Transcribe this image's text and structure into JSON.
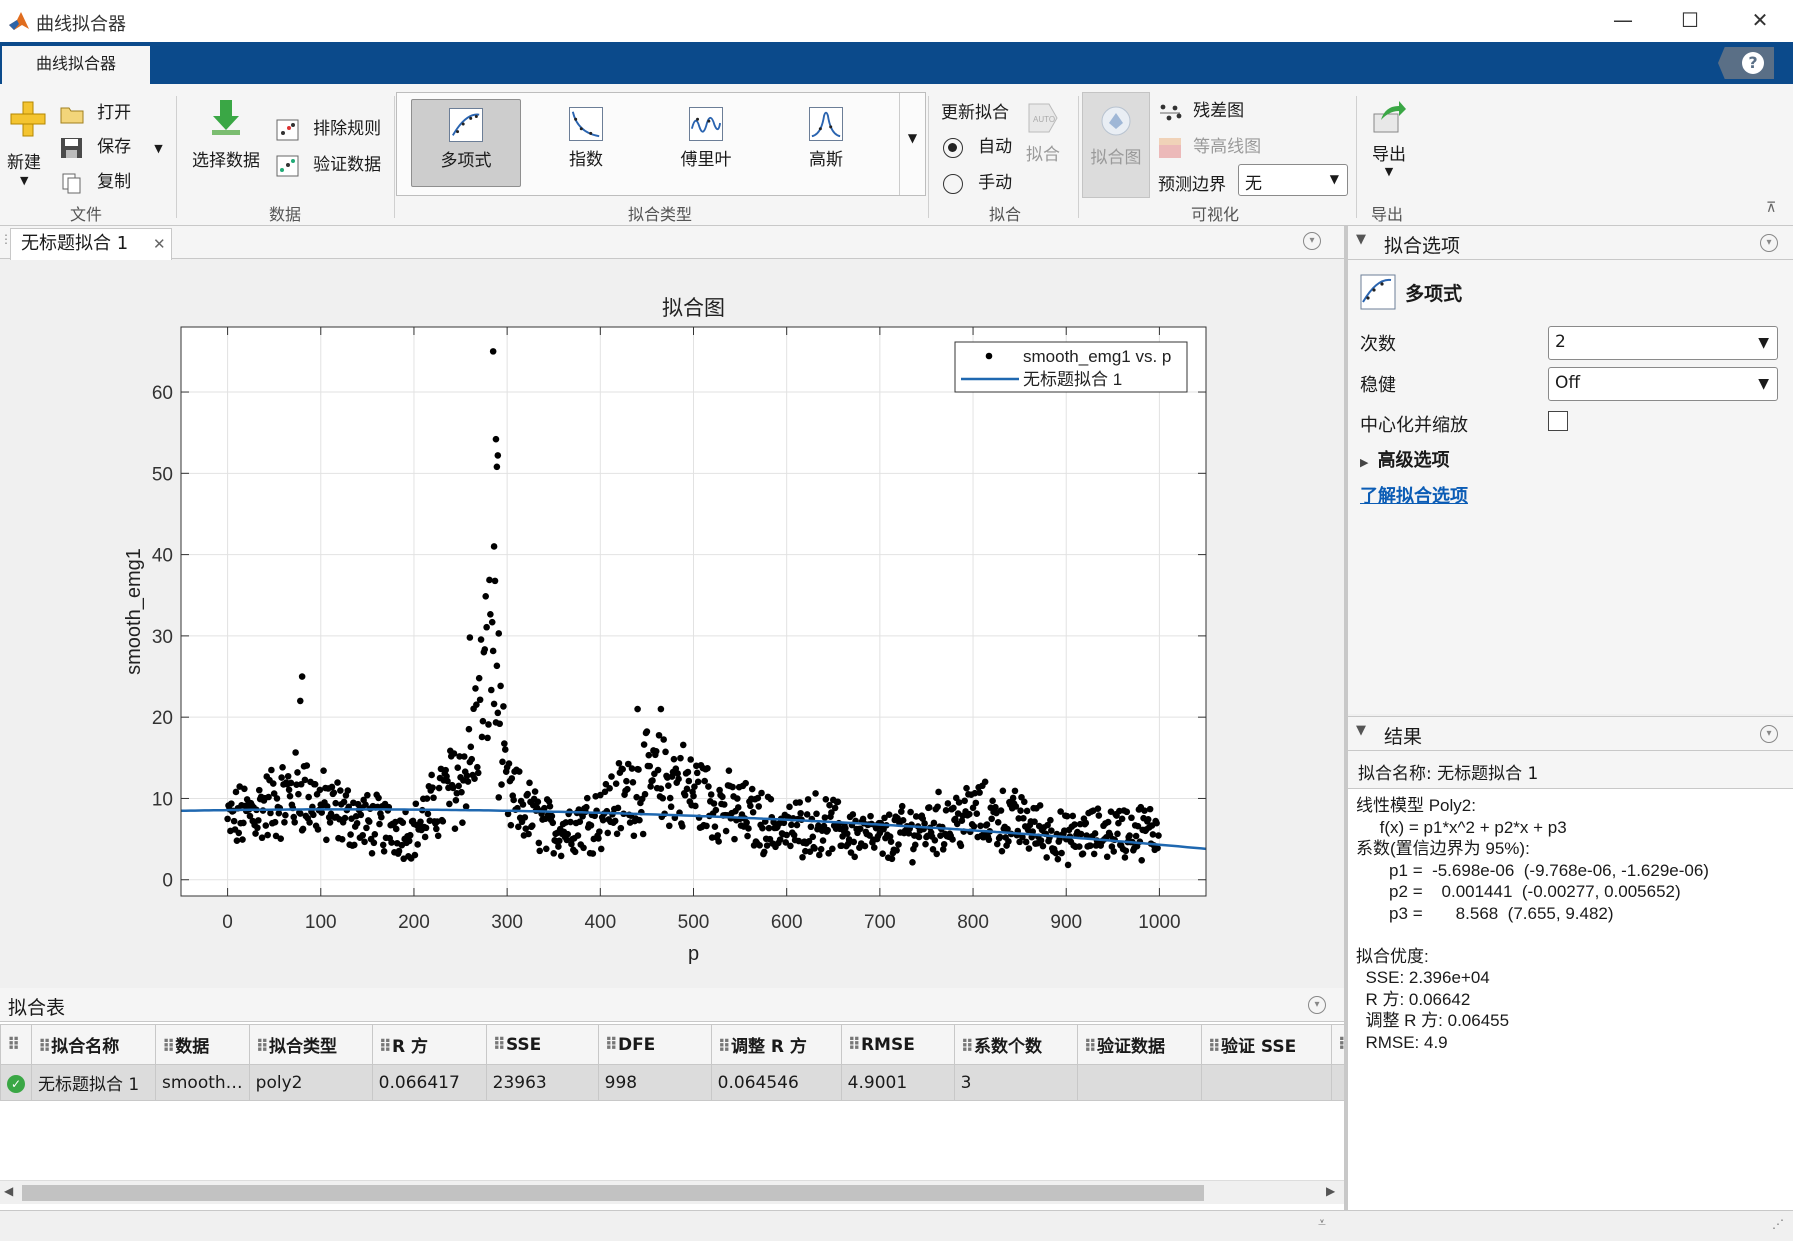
{
  "window": {
    "title": "曲线拟合器"
  },
  "ribbon": {
    "tab": "曲线拟合器",
    "file": {
      "new": "新建",
      "open": "打开",
      "save": "保存",
      "copy": "复制",
      "group": "文件"
    },
    "data": {
      "select": "选择数据",
      "exclusion": "排除规则",
      "validation": "验证数据",
      "group": "数据"
    },
    "fit_type": {
      "items": [
        "多项式",
        "指数",
        "傅里叶",
        "高斯"
      ],
      "selected": "多项式",
      "group": "拟合类型"
    },
    "fit": {
      "update_label": "更新拟合",
      "auto": "自动",
      "manual": "手动",
      "fit_btn": "拟合",
      "group": "拟合",
      "auto_icon_text": "AUTO",
      "mode": "自动"
    },
    "visualize": {
      "fit_plot": "拟合图",
      "residuals": "残差图",
      "contour": "等高线图",
      "prediction_bounds_label": "预测边界",
      "prediction_bounds_value": "无",
      "group": "可视化"
    },
    "export": {
      "label": "导出",
      "group": "导出"
    }
  },
  "document": {
    "tab": "无标题拟合 1"
  },
  "colors": {
    "ribbon": "#0b4a8b",
    "fit_line": "#1f68b0",
    "points": "#000000"
  },
  "chart_data": {
    "type": "scatter",
    "title": "拟合图",
    "xlabel": "p",
    "ylabel": "smooth_emg1",
    "xlim": [
      -50,
      1050
    ],
    "ylim": [
      -2,
      68
    ],
    "xticks": [
      0,
      100,
      200,
      300,
      400,
      500,
      600,
      700,
      800,
      900,
      1000
    ],
    "yticks": [
      0,
      10,
      20,
      30,
      40,
      50,
      60
    ],
    "grid": true,
    "legend_position": "top-right",
    "series": [
      {
        "name": "smooth_emg1 vs. p",
        "kind": "points",
        "count": 1000,
        "approx_profile_x": [
          0,
          80,
          100,
          150,
          200,
          260,
          285,
          290,
          300,
          350,
          400,
          445,
          480,
          530,
          600,
          630,
          700,
          800,
          850,
          900,
          950,
          1000
        ],
        "approx_profile_y": [
          7,
          11,
          9,
          7,
          6,
          14,
          30,
          20,
          10,
          6,
          8,
          12,
          12,
          9,
          6,
          7,
          5,
          8,
          7,
          5,
          6,
          6
        ],
        "outliers": [
          [
            285,
            65
          ],
          [
            288,
            54.2
          ],
          [
            290,
            52.2
          ],
          [
            289,
            50.8
          ],
          [
            286,
            41
          ],
          [
            291,
            30.3
          ],
          [
            260,
            29.8
          ],
          [
            80,
            25
          ],
          [
            78,
            22
          ],
          [
            440,
            21
          ],
          [
            465,
            21
          ]
        ]
      },
      {
        "name": "无标题拟合 1",
        "kind": "line",
        "model": {
          "p1": -5.698e-06,
          "p2": 0.001441,
          "p3": 8.568
        }
      }
    ]
  },
  "fit_table": {
    "title": "拟合表",
    "columns": [
      "拟合名称",
      "数据",
      "拟合类型",
      "R 方",
      "SSE",
      "DFE",
      "调整 R 方",
      "RMSE",
      "系数个数",
      "验证数据",
      "验证 SSE"
    ],
    "rows": [
      [
        "无标题拟合 1",
        "smooth…",
        "poly2",
        "0.066417",
        "23963",
        "998",
        "0.064546",
        "4.9001",
        "3",
        "",
        ""
      ]
    ]
  },
  "fit_options": {
    "title": "拟合选项",
    "type": "多项式",
    "degree_label": "次数",
    "degree_value": "2",
    "robust_label": "稳健",
    "robust_value": "Off",
    "center_scale_label": "中心化并缩放",
    "center_scale_checked": false,
    "advanced_label": "高级选项",
    "learn_more": "了解拟合选项"
  },
  "results": {
    "title": "结果",
    "fit_name": "拟合名称: 无标题拟合 1",
    "text": "线性模型 Poly2:\n     f(x) = p1*x^2 + p2*x + p3\n系数(置信边界为 95%):\n       p1 =  -5.698e-06  (-9.768e-06, -1.629e-06)\n       p2 =    0.001441  (-0.00277, 0.005652)\n       p3 =       8.568  (7.655, 9.482)\n\n拟合优度:\n  SSE: 2.396e+04\n  R 方: 0.06642\n  调整 R 方: 0.06455\n  RMSE: 4.9"
  }
}
